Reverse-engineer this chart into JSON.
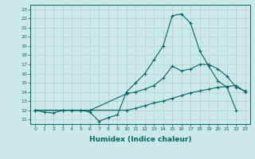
{
  "title": "",
  "xlabel": "Humidex (Indice chaleur)",
  "ylabel": "",
  "background_color": "#cde8e8",
  "grid_color": "#b0d0d0",
  "line_color": "#006666",
  "xlim": [
    -0.5,
    23.5
  ],
  "ylim": [
    10.5,
    23.5
  ],
  "xticks": [
    0,
    1,
    2,
    3,
    4,
    5,
    6,
    7,
    8,
    9,
    10,
    11,
    12,
    13,
    14,
    15,
    16,
    17,
    18,
    19,
    20,
    21,
    22,
    23
  ],
  "yticks": [
    11,
    12,
    13,
    14,
    15,
    16,
    17,
    18,
    19,
    20,
    21,
    22,
    23
  ],
  "line1_x": [
    0,
    1,
    2,
    3,
    4,
    5,
    6,
    7,
    8,
    9,
    10,
    11,
    12,
    13,
    14,
    15,
    16,
    17,
    18,
    19,
    20,
    21,
    22
  ],
  "line1_y": [
    12,
    11.8,
    11.7,
    12.0,
    12.0,
    12.0,
    11.8,
    10.8,
    11.2,
    11.5,
    14.0,
    15.0,
    16.0,
    17.5,
    19.0,
    22.3,
    22.5,
    21.5,
    18.5,
    16.8,
    15.2,
    14.5,
    12.0
  ],
  "line2_x": [
    0,
    3,
    4,
    5,
    6,
    10,
    11,
    12,
    13,
    14,
    15,
    16,
    17,
    18,
    19,
    20,
    21,
    22,
    23
  ],
  "line2_y": [
    12,
    12,
    12,
    12,
    12,
    13.8,
    14.0,
    14.3,
    14.7,
    15.5,
    16.8,
    16.3,
    16.5,
    17.0,
    17.0,
    16.5,
    15.7,
    14.5,
    14.1
  ],
  "line3_x": [
    0,
    10,
    11,
    12,
    13,
    14,
    15,
    16,
    17,
    18,
    19,
    20,
    21,
    22,
    23
  ],
  "line3_y": [
    12,
    12.0,
    12.2,
    12.5,
    12.8,
    13.0,
    13.3,
    13.6,
    13.9,
    14.1,
    14.3,
    14.5,
    14.6,
    14.7,
    14.0
  ]
}
